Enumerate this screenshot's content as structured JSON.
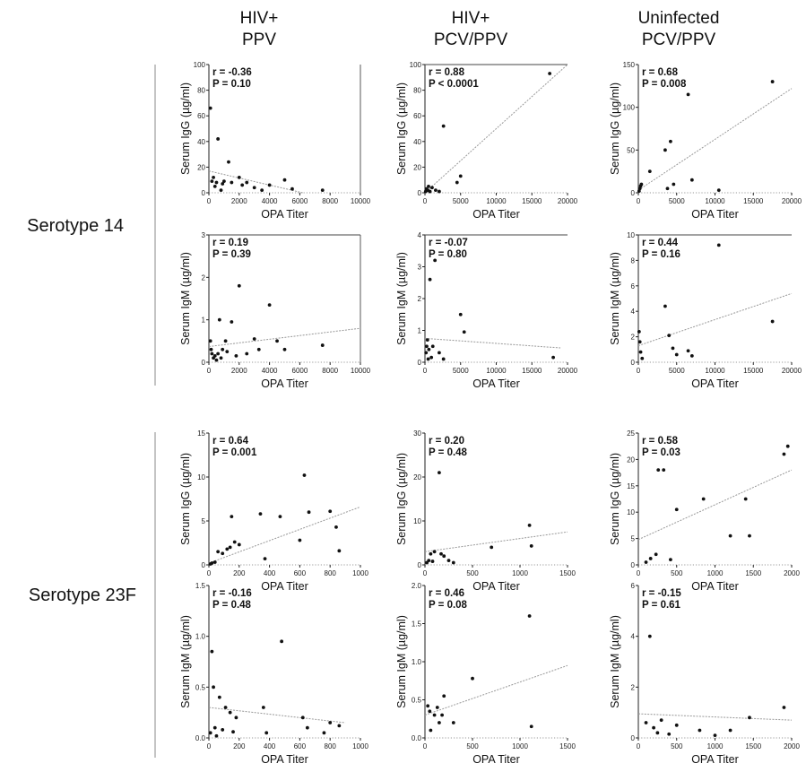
{
  "column_headers": [
    {
      "line1": "HIV+",
      "line2": "PPV"
    },
    {
      "line1": "HIV+",
      "line2": "PCV/PPV"
    },
    {
      "line1": "Uninfected",
      "line2": "PCV/PPV"
    }
  ],
  "row_group_labels": [
    "Serotype 14",
    "Serotype 23F"
  ],
  "chart_data": [
    {
      "type": "scatter",
      "group": "Serotype 14",
      "column": "HIV+ PPV",
      "xlabel": "OPA Titer",
      "ylabel": "Serum IgG (µg/ml)",
      "xlim": [
        0,
        10000
      ],
      "ylim": [
        0,
        100
      ],
      "xticks": [
        "0",
        "2000",
        "4000",
        "6000",
        "8000",
        "10000"
      ],
      "yticks": [
        "0",
        "20",
        "40",
        "60",
        "80",
        "100"
      ],
      "r": "r = -0.36",
      "p": "P = 0.10",
      "fit": [
        [
          0,
          17
        ],
        [
          6200,
          0
        ]
      ],
      "points": [
        [
          100,
          66
        ],
        [
          200,
          9
        ],
        [
          300,
          12
        ],
        [
          400,
          5
        ],
        [
          500,
          8
        ],
        [
          600,
          42
        ],
        [
          800,
          2
        ],
        [
          900,
          7
        ],
        [
          1000,
          9
        ],
        [
          1300,
          24
        ],
        [
          1500,
          8
        ],
        [
          2000,
          12
        ],
        [
          2200,
          6
        ],
        [
          2500,
          8
        ],
        [
          3000,
          4
        ],
        [
          3500,
          2
        ],
        [
          4000,
          6
        ],
        [
          5000,
          10
        ],
        [
          5500,
          3
        ],
        [
          7500,
          2
        ]
      ]
    },
    {
      "type": "scatter",
      "group": "Serotype 14",
      "column": "HIV+ PCV/PPV",
      "xlabel": "OPA Titer",
      "ylabel": "Serum IgG (µg/ml)",
      "xlim": [
        0,
        20000
      ],
      "ylim": [
        0,
        100
      ],
      "xticks": [
        "0",
        "5000",
        "10000",
        "15000",
        "20000"
      ],
      "yticks": [
        "0",
        "20",
        "40",
        "60",
        "80",
        "100"
      ],
      "r": "r = 0.88",
      "p": "P < 0.0001",
      "fit": [
        [
          0,
          0
        ],
        [
          20000,
          100
        ]
      ],
      "points": [
        [
          100,
          1
        ],
        [
          200,
          3
        ],
        [
          400,
          2
        ],
        [
          500,
          5
        ],
        [
          700,
          1
        ],
        [
          1000,
          4
        ],
        [
          1500,
          2
        ],
        [
          2000,
          1
        ],
        [
          2600,
          52
        ],
        [
          4500,
          8
        ],
        [
          5000,
          13
        ],
        [
          17500,
          93
        ]
      ]
    },
    {
      "type": "scatter",
      "group": "Serotype 14",
      "column": "Uninfected PCV/PPV",
      "xlabel": "OPA Titer",
      "ylabel": "Serum IgG (µg/ml)",
      "xlim": [
        0,
        20000
      ],
      "ylim": [
        0,
        150
      ],
      "xticks": [
        "0",
        "5000",
        "10000",
        "15000",
        "20000"
      ],
      "yticks": [
        "0",
        "50",
        "100",
        "150"
      ],
      "r": "r = 0.68",
      "p": "P = 0.008",
      "fit": [
        [
          0,
          3
        ],
        [
          20000,
          122
        ]
      ],
      "points": [
        [
          100,
          2
        ],
        [
          200,
          5
        ],
        [
          300,
          8
        ],
        [
          400,
          10
        ],
        [
          1500,
          25
        ],
        [
          3500,
          50
        ],
        [
          3800,
          5
        ],
        [
          4200,
          60
        ],
        [
          4600,
          10
        ],
        [
          6500,
          115
        ],
        [
          7000,
          15
        ],
        [
          10500,
          3
        ],
        [
          17500,
          130
        ]
      ]
    },
    {
      "type": "scatter",
      "group": "Serotype 14",
      "column": "HIV+ PPV",
      "xlabel": "OPA Titer",
      "ylabel": "Serum IgM (µg/ml)",
      "xlim": [
        0,
        10000
      ],
      "ylim": [
        0,
        3
      ],
      "xticks": [
        "0",
        "2000",
        "4000",
        "6000",
        "8000",
        "10000"
      ],
      "yticks": [
        "0",
        "1",
        "2",
        "3"
      ],
      "r": "r = 0.19",
      "p": "P = 0.39",
      "fit": [
        [
          0,
          0.37
        ],
        [
          10000,
          0.8
        ]
      ],
      "points": [
        [
          100,
          0.5
        ],
        [
          150,
          0.3
        ],
        [
          200,
          0.2
        ],
        [
          300,
          0.1
        ],
        [
          400,
          0.15
        ],
        [
          500,
          0.05
        ],
        [
          600,
          0.2
        ],
        [
          700,
          1.0
        ],
        [
          800,
          0.1
        ],
        [
          900,
          0.3
        ],
        [
          1100,
          0.5
        ],
        [
          1200,
          0.25
        ],
        [
          1500,
          0.95
        ],
        [
          1800,
          0.15
        ],
        [
          2000,
          1.8
        ],
        [
          2500,
          0.2
        ],
        [
          3000,
          0.55
        ],
        [
          3300,
          0.3
        ],
        [
          4000,
          1.35
        ],
        [
          4500,
          0.5
        ],
        [
          5000,
          0.3
        ],
        [
          7500,
          0.4
        ]
      ]
    },
    {
      "type": "scatter",
      "group": "Serotype 14",
      "column": "HIV+ PCV/PPV",
      "xlabel": "OPA Titer",
      "ylabel": "Serum IgM (µg/ml)",
      "xlim": [
        0,
        20000
      ],
      "ylim": [
        0,
        4
      ],
      "xticks": [
        "0",
        "5000",
        "10000",
        "15000",
        "20000"
      ],
      "yticks": [
        "0",
        "1",
        "2",
        "3",
        "4"
      ],
      "r": "r = -0.07",
      "p": "P = 0.80",
      "fit": [
        [
          0,
          0.75
        ],
        [
          19000,
          0.45
        ]
      ],
      "points": [
        [
          150,
          0.3
        ],
        [
          250,
          0.5
        ],
        [
          350,
          0.7
        ],
        [
          450,
          0.1
        ],
        [
          550,
          0.4
        ],
        [
          700,
          2.6
        ],
        [
          900,
          0.15
        ],
        [
          1100,
          0.5
        ],
        [
          1400,
          3.2
        ],
        [
          2000,
          0.3
        ],
        [
          2600,
          0.1
        ],
        [
          5000,
          1.5
        ],
        [
          5500,
          0.95
        ],
        [
          18000,
          0.15
        ]
      ]
    },
    {
      "type": "scatter",
      "group": "Serotype 14",
      "column": "Uninfected PCV/PPV",
      "xlabel": "OPA Titer",
      "ylabel": "Serum IgM (µg/ml)",
      "xlim": [
        0,
        20000
      ],
      "ylim": [
        0,
        10
      ],
      "xticks": [
        "0",
        "5000",
        "10000",
        "15000",
        "20000"
      ],
      "yticks": [
        "0",
        "2",
        "4",
        "6",
        "8",
        "10"
      ],
      "r": "r = 0.44",
      "p": "P = 0.16",
      "fit": [
        [
          0,
          1.3
        ],
        [
          20000,
          5.4
        ]
      ],
      "points": [
        [
          100,
          2.4
        ],
        [
          200,
          1.6
        ],
        [
          300,
          0.8
        ],
        [
          500,
          0.3
        ],
        [
          3500,
          4.4
        ],
        [
          4000,
          2.1
        ],
        [
          4500,
          1.1
        ],
        [
          5000,
          0.6
        ],
        [
          6500,
          0.9
        ],
        [
          7000,
          0.5
        ],
        [
          10500,
          9.2
        ],
        [
          17500,
          3.2
        ]
      ]
    },
    {
      "type": "scatter",
      "group": "Serotype 23F",
      "column": "HIV+ PPV",
      "xlabel": "OPA Titer",
      "ylabel": "Serum IgG (µg/ml)",
      "xlim": [
        0,
        1000
      ],
      "ylim": [
        0,
        15
      ],
      "xticks": [
        "0",
        "200",
        "400",
        "600",
        "800",
        "1000"
      ],
      "yticks": [
        "0",
        "5",
        "10",
        "15"
      ],
      "r": "r = 0.64",
      "p": "P = 0.001",
      "fit": [
        [
          0,
          0.2
        ],
        [
          1000,
          6.6
        ]
      ],
      "points": [
        [
          10,
          0.1
        ],
        [
          20,
          0.2
        ],
        [
          40,
          0.3
        ],
        [
          60,
          1.5
        ],
        [
          90,
          1.3
        ],
        [
          120,
          1.8
        ],
        [
          140,
          2.0
        ],
        [
          150,
          5.5
        ],
        [
          170,
          2.6
        ],
        [
          200,
          2.3
        ],
        [
          340,
          5.8
        ],
        [
          370,
          0.7
        ],
        [
          470,
          5.5
        ],
        [
          600,
          2.8
        ],
        [
          630,
          10.2
        ],
        [
          660,
          6.0
        ],
        [
          800,
          6.1
        ],
        [
          840,
          4.3
        ],
        [
          860,
          1.6
        ]
      ]
    },
    {
      "type": "scatter",
      "group": "Serotype 23F",
      "column": "HIV+ PCV/PPV",
      "xlabel": "OPA Titer",
      "ylabel": "Serum IgG (µg/ml)",
      "xlim": [
        0,
        1500
      ],
      "ylim": [
        0,
        30
      ],
      "xticks": [
        "0",
        "500",
        "1000",
        "1500"
      ],
      "yticks": [
        "0",
        "10",
        "20",
        "30"
      ],
      "r": "r = 0.20",
      "p": "P = 0.48",
      "fit": [
        [
          0,
          3.0
        ],
        [
          1500,
          7.5
        ]
      ],
      "points": [
        [
          20,
          0.5
        ],
        [
          40,
          1.0
        ],
        [
          60,
          2.5
        ],
        [
          80,
          0.8
        ],
        [
          100,
          3.0
        ],
        [
          150,
          21
        ],
        [
          170,
          2.5
        ],
        [
          200,
          2.0
        ],
        [
          250,
          1.0
        ],
        [
          300,
          0.5
        ],
        [
          700,
          4.0
        ],
        [
          1100,
          9.0
        ],
        [
          1120,
          4.3
        ]
      ]
    },
    {
      "type": "scatter",
      "group": "Serotype 23F",
      "column": "Uninfected PCV/PPV",
      "xlabel": "OPA Titer",
      "ylabel": "Serum IgG (µg/ml)",
      "xlim": [
        0,
        2000
      ],
      "ylim": [
        0,
        25
      ],
      "xticks": [
        "0",
        "500",
        "1000",
        "1500",
        "2000"
      ],
      "yticks": [
        "0",
        "5",
        "10",
        "15",
        "20",
        "25"
      ],
      "r": "r = 0.58",
      "p": "P = 0.03",
      "fit": [
        [
          0,
          4.8
        ],
        [
          2000,
          18
        ]
      ],
      "points": [
        [
          100,
          0.5
        ],
        [
          160,
          1.2
        ],
        [
          230,
          2.0
        ],
        [
          260,
          18
        ],
        [
          330,
          18
        ],
        [
          420,
          1.0
        ],
        [
          500,
          10.5
        ],
        [
          850,
          12.5
        ],
        [
          1200,
          5.5
        ],
        [
          1400,
          12.5
        ],
        [
          1450,
          5.5
        ],
        [
          1900,
          21
        ],
        [
          1950,
          22.5
        ]
      ]
    },
    {
      "type": "scatter",
      "group": "Serotype 23F",
      "column": "HIV+ PPV",
      "xlabel": "OPA Titer",
      "ylabel": "Serum IgM (µg/ml)",
      "xlim": [
        0,
        1000
      ],
      "ylim": [
        0,
        1.5
      ],
      "xticks": [
        "0",
        "200",
        "400",
        "600",
        "800",
        "1000"
      ],
      "yticks": [
        "0.0",
        "0.5",
        "1.0",
        "1.5"
      ],
      "r": "r = -0.16",
      "p": "P = 0.48",
      "fit": [
        [
          0,
          0.3
        ],
        [
          900,
          0.15
        ]
      ],
      "points": [
        [
          10,
          0.05
        ],
        [
          20,
          0.85
        ],
        [
          30,
          0.5
        ],
        [
          40,
          0.1
        ],
        [
          50,
          0.02
        ],
        [
          70,
          0.4
        ],
        [
          90,
          0.08
        ],
        [
          110,
          0.3
        ],
        [
          140,
          0.25
        ],
        [
          160,
          0.06
        ],
        [
          180,
          0.2
        ],
        [
          360,
          0.3
        ],
        [
          380,
          0.05
        ],
        [
          480,
          0.95
        ],
        [
          620,
          0.2
        ],
        [
          650,
          0.1
        ],
        [
          760,
          0.05
        ],
        [
          800,
          0.15
        ],
        [
          860,
          0.12
        ]
      ]
    },
    {
      "type": "scatter",
      "group": "Serotype 23F",
      "column": "HIV+ PCV/PPV",
      "xlabel": "OPA Titer",
      "ylabel": "Serum IgM (µg/ml)",
      "xlim": [
        0,
        1500
      ],
      "ylim": [
        0,
        2.0
      ],
      "xticks": [
        "0",
        "500",
        "1000",
        "1500"
      ],
      "yticks": [
        "0.0",
        "0.5",
        "1.0",
        "1.5",
        "2.0"
      ],
      "r": "r = 0.46",
      "p": "P = 0.08",
      "fit": [
        [
          0,
          0.3
        ],
        [
          1500,
          0.95
        ]
      ],
      "points": [
        [
          30,
          0.42
        ],
        [
          50,
          0.35
        ],
        [
          60,
          0.1
        ],
        [
          100,
          0.3
        ],
        [
          130,
          0.4
        ],
        [
          150,
          0.2
        ],
        [
          180,
          0.3
        ],
        [
          200,
          0.55
        ],
        [
          300,
          0.2
        ],
        [
          500,
          0.78
        ],
        [
          1100,
          1.6
        ],
        [
          1120,
          0.15
        ]
      ]
    },
    {
      "type": "scatter",
      "group": "Serotype 23F",
      "column": "Uninfected PCV/PPV",
      "xlabel": "OPA Titer",
      "ylabel": "Serum IgM (µg/ml)",
      "xlim": [
        0,
        2000
      ],
      "ylim": [
        0,
        6
      ],
      "xticks": [
        "0",
        "500",
        "1000",
        "1500",
        "2000"
      ],
      "yticks": [
        "0",
        "2",
        "4",
        "6"
      ],
      "r": "r = -0.15",
      "p": "P = 0.61",
      "fit": [
        [
          0,
          0.95
        ],
        [
          2000,
          0.7
        ]
      ],
      "points": [
        [
          100,
          0.6
        ],
        [
          150,
          4.0
        ],
        [
          200,
          0.4
        ],
        [
          250,
          0.2
        ],
        [
          300,
          0.7
        ],
        [
          400,
          0.15
        ],
        [
          500,
          0.5
        ],
        [
          800,
          0.3
        ],
        [
          1000,
          0.1
        ],
        [
          1200,
          0.3
        ],
        [
          1450,
          0.8
        ],
        [
          1900,
          1.2
        ]
      ]
    }
  ]
}
